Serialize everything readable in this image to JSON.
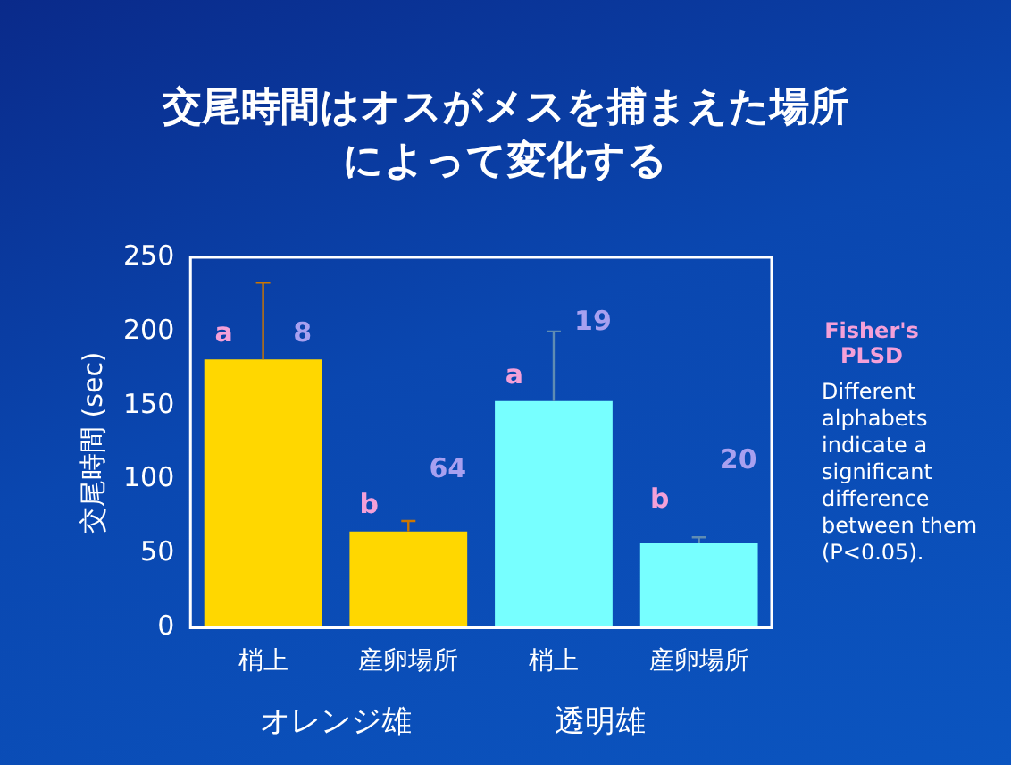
{
  "chart_data": {
    "type": "bar",
    "title": "交尾時間はオスがメスを捕まえた場所によって変化する",
    "ylabel": "交尾時間 (sec)",
    "categories": [
      "梢上",
      "産卵場所",
      "梢上",
      "産卵場所"
    ],
    "values": [
      181,
      65,
      153,
      57
    ],
    "colors": [
      "#ffd700",
      "#ffd700",
      "#77ffff",
      "#77ffff"
    ],
    "errors": [
      [
        181,
        233
      ],
      [
        65,
        72
      ],
      [
        153,
        200
      ],
      [
        57,
        61
      ]
    ],
    "ylim": [
      0,
      250
    ],
    "yticks": [
      0,
      50,
      100,
      150,
      200,
      250
    ],
    "grid": false,
    "legend": false,
    "annotations": [
      "a",
      "8",
      "b",
      "64",
      "a",
      "19",
      "b",
      "20",
      "オレンジ雄",
      "透明雄",
      "Fisher's\nPLSD",
      "Different alphabets indicate a significant difference between them (P<0.05)."
    ]
  }
}
